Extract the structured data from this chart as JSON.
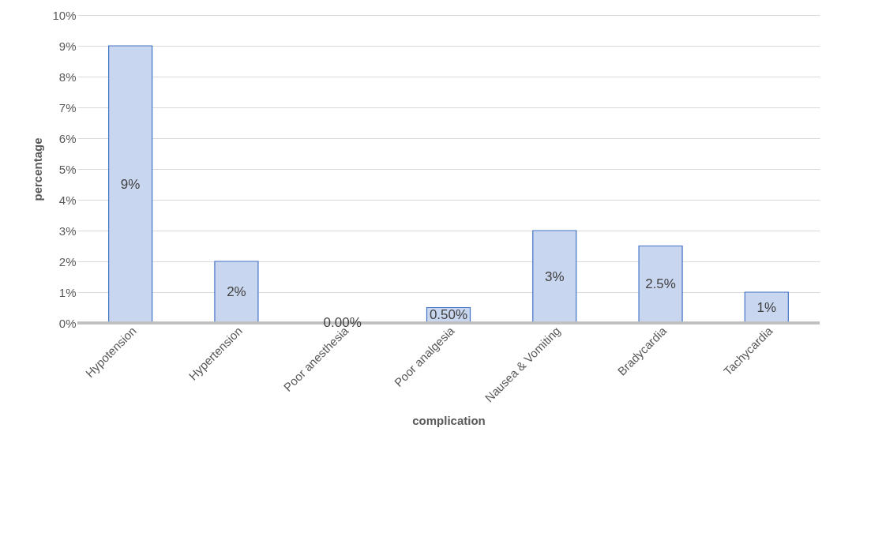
{
  "chart_data": {
    "type": "bar",
    "xlabel": "complication",
    "ylabel": "percentage",
    "categories": [
      "Hypotension",
      "Hypertension",
      "Poor anesthesia",
      "Poor analgesia",
      "Nausea & Vomiting",
      "Bradycardia",
      "Tachycardia"
    ],
    "values": [
      9,
      2,
      0,
      0.5,
      3,
      2.5,
      1
    ],
    "value_labels": [
      "9%",
      "2%",
      "0.00%",
      "0.50%",
      "3%",
      "2.5%",
      "1%"
    ],
    "color": "#4472c4",
    "ylim": [
      0,
      10
    ],
    "yticks": [
      {
        "value": 0,
        "label": "0%"
      },
      {
        "value": 1,
        "label": "1%"
      },
      {
        "value": 2,
        "label": "2%"
      },
      {
        "value": 3,
        "label": "3%"
      },
      {
        "value": 4,
        "label": "4%"
      },
      {
        "value": 5,
        "label": "5%"
      },
      {
        "value": 6,
        "label": "6%"
      },
      {
        "value": 7,
        "label": "7%"
      },
      {
        "value": 8,
        "label": "8%"
      },
      {
        "value": 9,
        "label": "9%"
      },
      {
        "value": 10,
        "label": "10%"
      }
    ],
    "grid": "y"
  }
}
